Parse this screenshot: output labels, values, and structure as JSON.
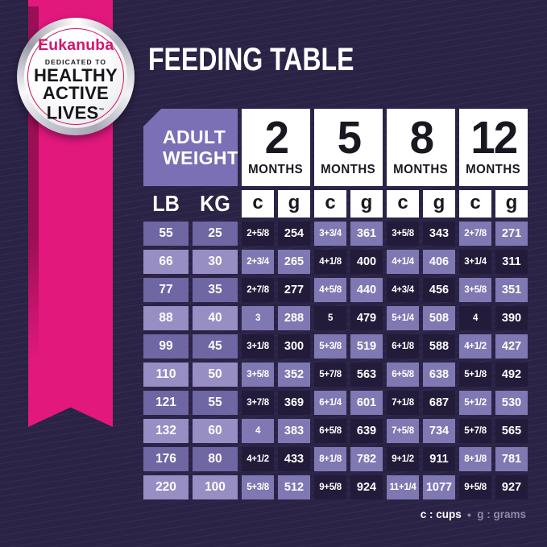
{
  "badge": {
    "brand": "Eukanuba",
    "tagline": "DEDICATED TO",
    "line1": "HEALTHY",
    "line2": "ACTIVE",
    "line3": "LIVES",
    "trademark": "™"
  },
  "title": "FEEDING TABLE",
  "table": {
    "corner_header": {
      "line1": "ADULT",
      "line2": "WEIGHT"
    },
    "months": [
      {
        "number": "2",
        "label": "MONTHS"
      },
      {
        "number": "5",
        "label": "MONTHS"
      },
      {
        "number": "8",
        "label": "MONTHS"
      },
      {
        "number": "12",
        "label": "MONTHS"
      }
    ],
    "weight_headers": [
      "LB",
      "KG"
    ],
    "unit_headers": [
      "c",
      "g"
    ]
  },
  "chart_data": {
    "type": "table",
    "title": "FEEDING TABLE",
    "columns": [
      "LB",
      "KG",
      "2 MONTHS c",
      "2 MONTHS g",
      "5 MONTHS c",
      "5 MONTHS g",
      "8 MONTHS c",
      "8 MONTHS g",
      "12 MONTHS c",
      "12 MONTHS g"
    ],
    "rows": [
      [
        "55",
        "25",
        "2+5/8",
        "254",
        "3+3/4",
        "361",
        "3+5/8",
        "343",
        "2+7/8",
        "271"
      ],
      [
        "66",
        "30",
        "2+3/4",
        "265",
        "4+1/8",
        "400",
        "4+1/4",
        "406",
        "3+1/4",
        "311"
      ],
      [
        "77",
        "35",
        "2+7/8",
        "277",
        "4+5/8",
        "440",
        "4+3/4",
        "456",
        "3+5/8",
        "351"
      ],
      [
        "88",
        "40",
        "3",
        "288",
        "5",
        "479",
        "5+1/4",
        "508",
        "4",
        "390"
      ],
      [
        "99",
        "45",
        "3+1/8",
        "300",
        "5+3/8",
        "519",
        "6+1/8",
        "588",
        "4+1/2",
        "427"
      ],
      [
        "110",
        "50",
        "3+5/8",
        "352",
        "5+7/8",
        "563",
        "6+5/8",
        "638",
        "5+1/8",
        "492"
      ],
      [
        "121",
        "55",
        "3+7/8",
        "369",
        "6+1/4",
        "601",
        "7+1/8",
        "687",
        "5+1/2",
        "530"
      ],
      [
        "132",
        "60",
        "4",
        "383",
        "6+5/8",
        "639",
        "7+5/8",
        "734",
        "5+7/8",
        "565"
      ],
      [
        "176",
        "80",
        "4+1/2",
        "433",
        "8+1/8",
        "782",
        "9+1/2",
        "911",
        "8+1/8",
        "781"
      ],
      [
        "220",
        "100",
        "5+3/8",
        "512",
        "9+5/8",
        "924",
        "11+1/4",
        "1077",
        "9+5/8",
        "927"
      ]
    ]
  },
  "legend": {
    "cups": "c : cups",
    "separator": "●",
    "grams": "g : grams"
  },
  "colors": {
    "bg": "#2a2345",
    "magenta": "#e2187d",
    "brand": "#d6136e",
    "header": "#7b70b6",
    "dark": "#221c3a",
    "purple": "#8078b2",
    "wmed": "#6f66a4",
    "wlight": "#978ec4",
    "ink": "#191820",
    "gray": "#8e8aa6"
  }
}
